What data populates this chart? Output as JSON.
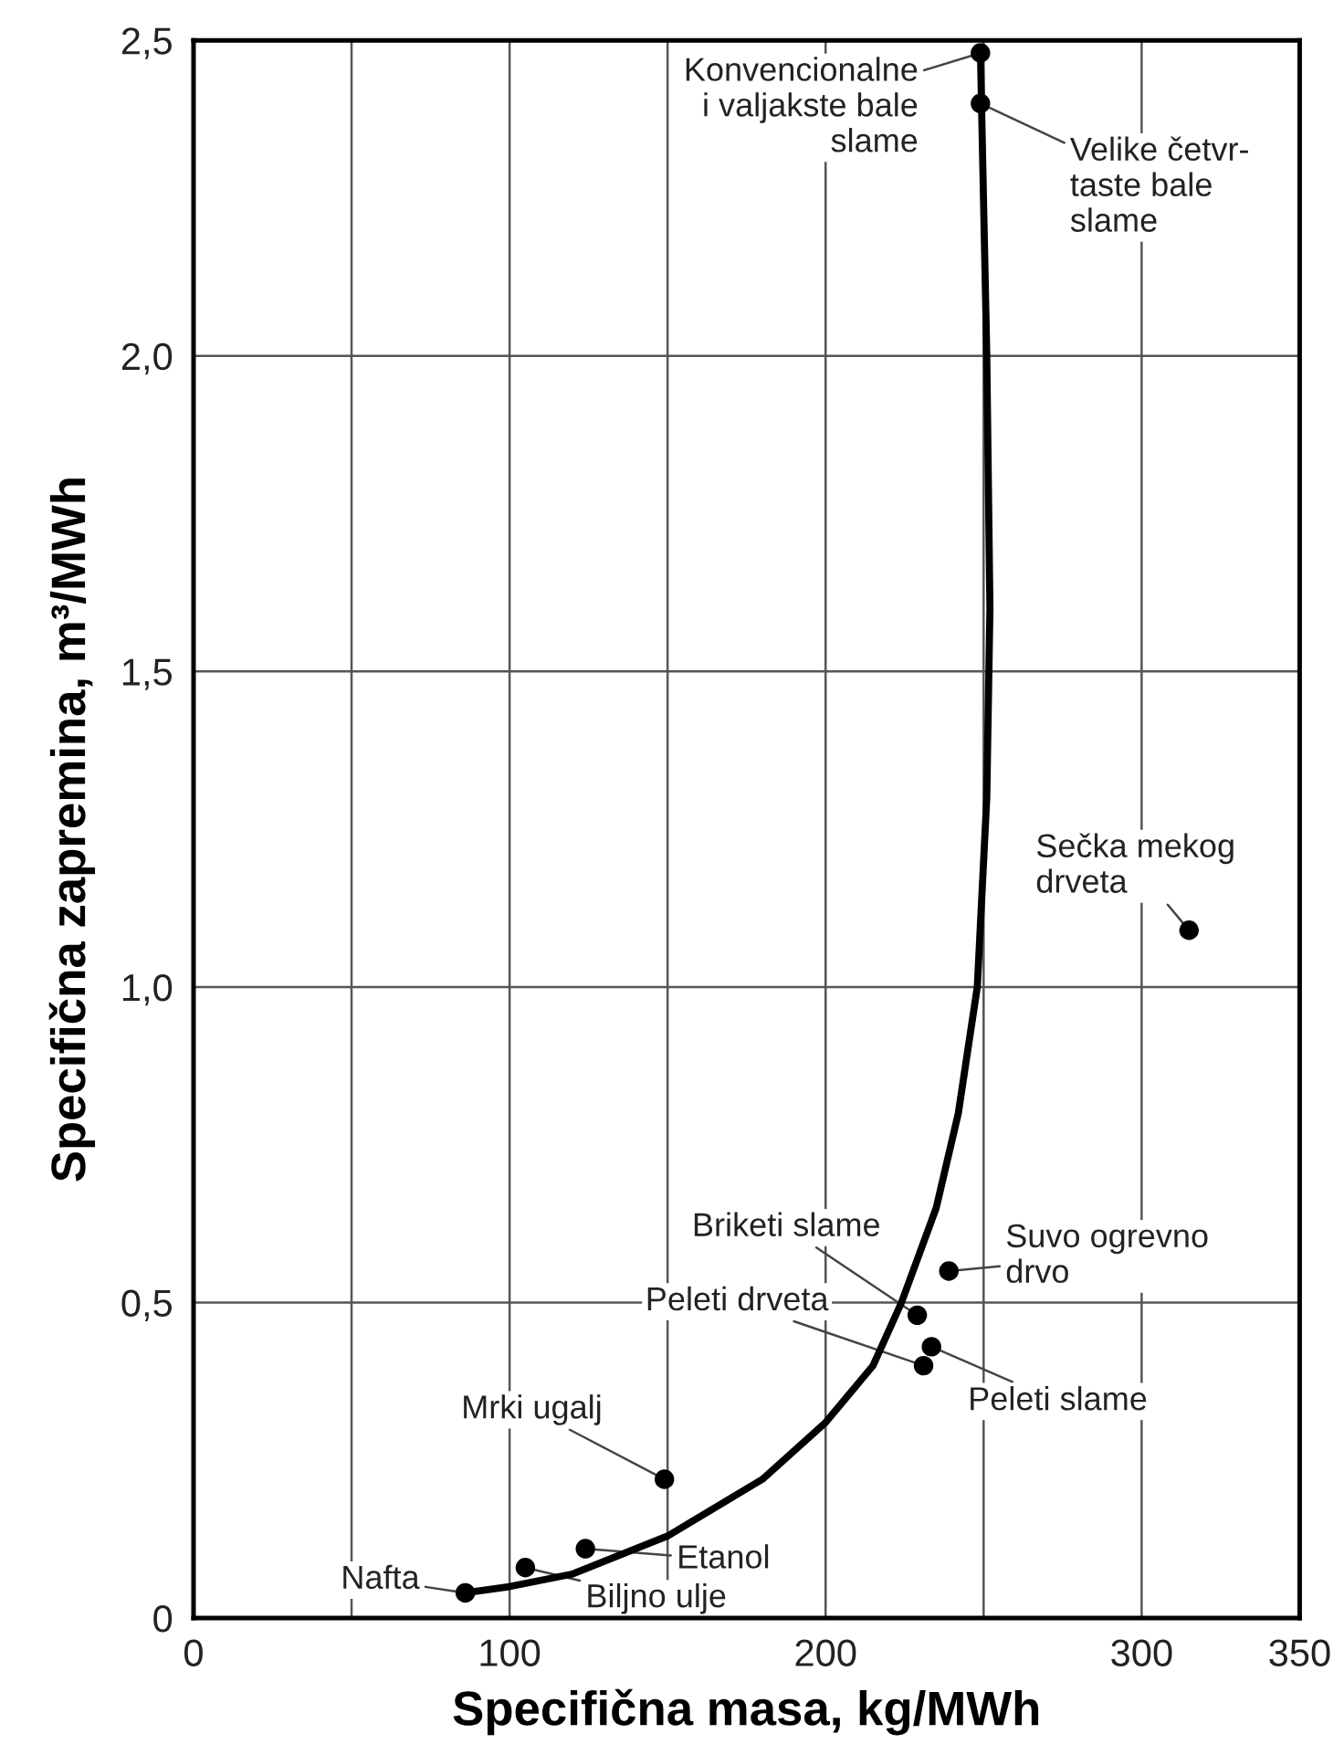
{
  "chart_data": {
    "type": "scatter",
    "xlabel": "Specifična masa, kg/MWh",
    "ylabel": "Specifična zapremina, m³/MWh",
    "series": [
      {
        "type": "line",
        "color": "#000000",
        "marker": "none",
        "x": [
          86,
          100,
          120,
          150,
          180,
          200,
          215,
          224,
          235,
          242,
          248,
          251,
          252,
          251,
          249
        ],
        "values": [
          0.04,
          0.05,
          0.07,
          0.13,
          0.22,
          0.31,
          0.4,
          0.5,
          0.65,
          0.8,
          1.0,
          1.3,
          1.6,
          2.0,
          2.48
        ]
      },
      {
        "color": "#000000",
        "marker": "circle",
        "x": [
          86,
          105,
          124,
          149,
          229,
          231,
          233.5,
          239,
          315,
          249,
          249
        ],
        "values": [
          0.04,
          0.08,
          0.11,
          0.22,
          0.48,
          0.4,
          0.43,
          0.55,
          1.09,
          2.48,
          2.4
        ]
      }
    ],
    "annotations": [
      {
        "text": "Nafta",
        "x": 86,
        "y": 0.04
      },
      {
        "text": "Biljno ulje",
        "x": 105,
        "y": 0.08
      },
      {
        "text": "Etanol",
        "x": 124,
        "y": 0.11
      },
      {
        "text": "Mrki ugalj",
        "x": 149,
        "y": 0.22
      },
      {
        "text": "Briketi slame",
        "x": 229,
        "y": 0.48
      },
      {
        "text": "Peleti drveta",
        "x": 231,
        "y": 0.4
      },
      {
        "text": "Peleti slame",
        "x": 233.5,
        "y": 0.43
      },
      {
        "text": "Suvo ogrevno\ndrvo",
        "x": 239,
        "y": 0.55
      },
      {
        "text": "Sečka mekog\ndrveta",
        "x": 315,
        "y": 1.09
      },
      {
        "text": "Konvencionalne\ni valjakste bale\nslame",
        "x": 249,
        "y": 2.48
      },
      {
        "text": "Velike četvr-\ntaste bale\nslame",
        "x": 249,
        "y": 2.4
      }
    ],
    "xlim": [
      0,
      350
    ],
    "xticks": [
      0,
      {
        "value": 50,
        "label": null
      },
      100,
      {
        "value": 150,
        "label": null
      },
      200,
      {
        "value": 250,
        "label": null
      },
      300,
      350
    ],
    "ylim": [
      0,
      2.5
    ],
    "yticks": [
      0,
      {
        "value": 0.5,
        "label": "0,5"
      },
      {
        "value": 1.0,
        "label": "1,0"
      },
      {
        "value": 1.5,
        "label": "1,5"
      },
      {
        "value": 2.0,
        "label": "2,0"
      },
      {
        "value": 2.5,
        "label": "2,5"
      }
    ],
    "grid": true
  }
}
